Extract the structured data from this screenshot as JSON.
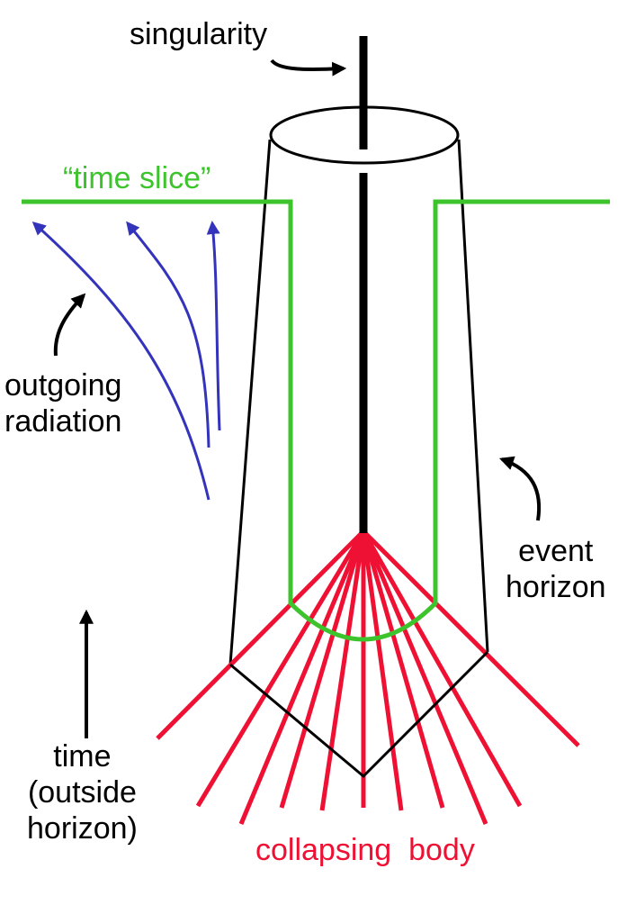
{
  "labels": {
    "singularity": "singularity",
    "time_slice": "“time slice”",
    "outgoing_radiation_line1": "outgoing",
    "outgoing_radiation_line2": "radiation",
    "event_horizon_line1": "event",
    "event_horizon_line2": "horizon",
    "time_line1": "time",
    "time_line2": "(outside",
    "time_line3": "horizon)",
    "collapsing_body": "collapsing  body"
  },
  "colors": {
    "black": "#000000",
    "time_slice": "#3dc42d",
    "radiation": "#3333bb",
    "collapsing_body": "#ee1133"
  }
}
